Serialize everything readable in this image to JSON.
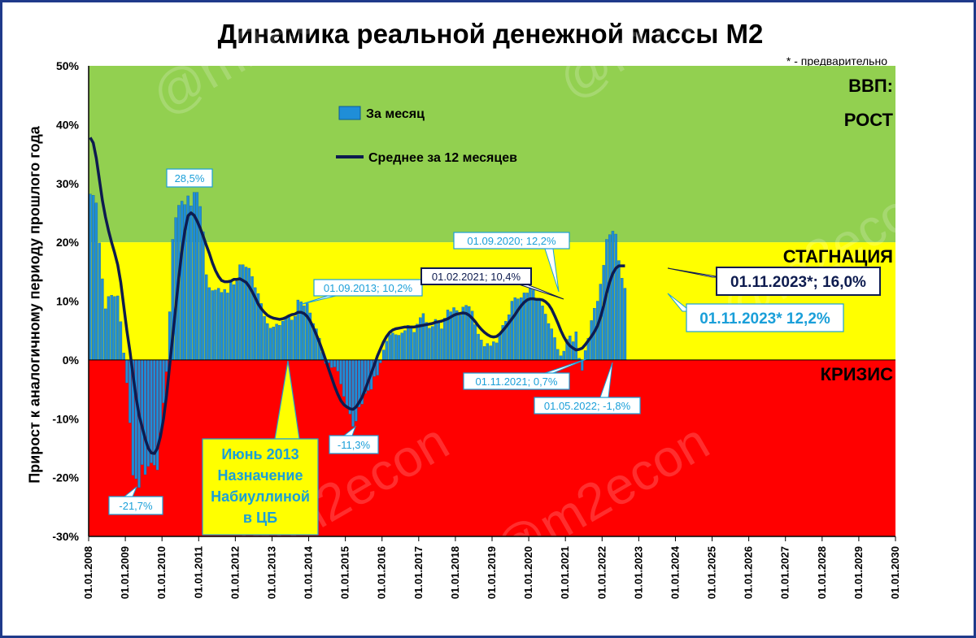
{
  "chart_data": {
    "type": "bar",
    "title": "Динамика реальной денежной массы М2",
    "note": "* - предварительно",
    "ylabel": "Прирост к аналогичному периоду прошлого года",
    "watermark": "@m2econ",
    "ylim": [
      -30,
      50
    ],
    "yticks": [
      "-30%",
      "-20%",
      "-10%",
      "0%",
      "10%",
      "20%",
      "30%",
      "40%",
      "50%"
    ],
    "xlim": [
      "2008-01-01",
      "2030-01-01"
    ],
    "xticks": [
      "01.01.2008",
      "01.01.2009",
      "01.01.2010",
      "01.01.2011",
      "01.01.2012",
      "01.01.2013",
      "01.01.2014",
      "01.01.2015",
      "01.01.2016",
      "01.01.2017",
      "01.01.2018",
      "01.01.2019",
      "01.01.2020",
      "01.01.2021",
      "01.01.2022",
      "01.01.2023",
      "01.01.2024",
      "01.01.2025",
      "01.01.2026",
      "01.01.2027",
      "01.01.2028",
      "01.01.2029",
      "01.01.2030"
    ],
    "zones": [
      {
        "label": "ВВП:",
        "label2": "РОСТ",
        "from": 20,
        "to": 50,
        "color": "#92d050"
      },
      {
        "label": "СТАГНАЦИЯ",
        "from": 0,
        "to": 20,
        "color": "#ffff00"
      },
      {
        "label": "КРИЗИС",
        "from": -30,
        "to": 0,
        "color": "#ff0000"
      }
    ],
    "bar_color": "#1f8ed8",
    "line_color": "#0d1b4f",
    "series": [
      {
        "name": "За месяц",
        "type": "bar",
        "start": "2008-01",
        "values": [
          28.2,
          28.0,
          26.7,
          19.9,
          13.8,
          8.7,
          10.8,
          11.0,
          10.8,
          10.9,
          6.5,
          1.2,
          -3.9,
          -10.7,
          -19.6,
          -20.2,
          -21.7,
          -17.8,
          -19.5,
          -18.1,
          -17.5,
          -17.9,
          -18.7,
          -12.4,
          -7.3,
          -2.0,
          8.2,
          20.5,
          24.2,
          26.3,
          27.0,
          26.4,
          27.9,
          26.2,
          28.5,
          28.5,
          26.1,
          21.8,
          14.5,
          12.3,
          11.8,
          11.9,
          12.2,
          11.5,
          12.0,
          11.4,
          13.3,
          12.8,
          13.4,
          16.2,
          16.2,
          15.8,
          15.6,
          14.2,
          12.3,
          11.3,
          9.6,
          7.4,
          6.2,
          5.4,
          5.6,
          6.1,
          5.9,
          6.6,
          7.0,
          7.5,
          6.8,
          7.4,
          10.2,
          9.9,
          9.2,
          9.6,
          8.0,
          6.2,
          5.3,
          3.7,
          1.3,
          -0.6,
          -0.5,
          -1.3,
          -1.2,
          -1.9,
          -4.1,
          -6.2,
          -8.1,
          -9.2,
          -11.3,
          -10.4,
          -8.0,
          -7.5,
          -5.7,
          -5.2,
          -5.0,
          -2.8,
          -2.6,
          -0.5,
          1.7,
          3.2,
          4.3,
          4.6,
          4.3,
          4.2,
          4.6,
          5.0,
          5.9,
          5.4,
          4.7,
          6.1,
          7.2,
          7.9,
          6.4,
          5.4,
          5.7,
          6.9,
          6.5,
          5.3,
          7.1,
          8.5,
          8.2,
          8.9,
          8.4,
          7.6,
          9.0,
          9.3,
          9.1,
          8.3,
          6.0,
          4.4,
          3.4,
          2.3,
          2.8,
          2.4,
          3.1,
          2.9,
          4.3,
          5.9,
          6.6,
          7.7,
          10.0,
          10.6,
          10.4,
          10.6,
          11.4,
          11.4,
          12.2,
          11.9,
          10.5,
          10.3,
          9.2,
          7.8,
          6.2,
          5.3,
          3.8,
          1.8,
          0.7,
          1.5,
          3.5,
          4.1,
          3.1,
          4.8,
          0.3,
          -1.8,
          1.6,
          3.7,
          6.7,
          8.8,
          10.0,
          12.9,
          16.1,
          20.5,
          21.3,
          21.9,
          21.4,
          16.9,
          13.9,
          12.2
        ]
      },
      {
        "name": "Среднее за 12 месяцев",
        "type": "line",
        "start": "2008-01",
        "values": [
          37.8,
          36.9,
          34.3,
          30.7,
          27.1,
          24.3,
          22.0,
          20.0,
          18.2,
          16.2,
          13.2,
          9.1,
          5.0,
          1.5,
          -2.5,
          -6.3,
          -9.4,
          -11.4,
          -13.4,
          -15.0,
          -15.8,
          -15.9,
          -15.0,
          -13.0,
          -10.0,
          -6.0,
          -1.0,
          4.0,
          9.0,
          14.0,
          18.5,
          22.0,
          24.5,
          25.0,
          24.6,
          23.6,
          22.4,
          21.0,
          19.5,
          18.1,
          16.5,
          15.2,
          14.2,
          13.5,
          13.3,
          13.3,
          13.4,
          13.7,
          13.7,
          13.8,
          13.5,
          13.2,
          12.5,
          11.6,
          10.6,
          9.5,
          8.7,
          8.1,
          7.6,
          7.3,
          7.1,
          7.0,
          6.9,
          7.0,
          7.2,
          7.5,
          7.7,
          7.8,
          8.1,
          8.1,
          7.9,
          7.4,
          6.6,
          5.5,
          4.3,
          3.0,
          1.6,
          0.1,
          -1.5,
          -3.0,
          -4.5,
          -5.8,
          -6.9,
          -7.6,
          -8.0,
          -8.3,
          -8.4,
          -8.0,
          -7.2,
          -6.3,
          -5.0,
          -3.6,
          -2.2,
          -0.8,
          0.7,
          1.9,
          3.1,
          4.0,
          4.7,
          5.1,
          5.3,
          5.4,
          5.5,
          5.6,
          5.6,
          5.6,
          5.6,
          5.7,
          5.8,
          5.9,
          6.0,
          6.1,
          6.2,
          6.4,
          6.5,
          6.6,
          6.8,
          7.0,
          7.3,
          7.6,
          7.8,
          7.9,
          8.0,
          7.9,
          7.6,
          7.1,
          6.5,
          5.8,
          5.2,
          4.7,
          4.3,
          4.0,
          3.9,
          4.0,
          4.4,
          5.0,
          5.6,
          6.3,
          7.0,
          7.7,
          8.5,
          9.2,
          9.8,
          10.2,
          10.4,
          10.4,
          10.3,
          10.3,
          10.2,
          9.9,
          9.4,
          8.6,
          7.5,
          6.3,
          5.0,
          3.9,
          3.0,
          2.4,
          2.0,
          1.7,
          1.8,
          2.0,
          2.6,
          3.3,
          4.0,
          4.8,
          5.8,
          7.3,
          9.2,
          11.4,
          13.3,
          14.7,
          15.6,
          16.0,
          16.0,
          16.0
        ]
      }
    ],
    "legend": [
      {
        "label": "За месяц",
        "kind": "bar"
      },
      {
        "label": "Среднее за 12 месяцев",
        "kind": "line"
      }
    ],
    "annotations": [
      {
        "text": "28,5%",
        "style": "light"
      },
      {
        "text": "-21,7%",
        "style": "light"
      },
      {
        "text": "-11,3%",
        "style": "light"
      },
      {
        "text": "01.09.2013; 10,2%",
        "style": "light"
      },
      {
        "text": "01.09.2020; 12,2%",
        "style": "light"
      },
      {
        "text": "01.02.2021; 10,4%",
        "style": "dark"
      },
      {
        "text": "01.11.2021; 0,7%",
        "style": "light"
      },
      {
        "text": "01.05.2022; -1,8%",
        "style": "light"
      },
      {
        "text": "01.11.2023*; 16,0%",
        "style": "dark-big"
      },
      {
        "text": "01.11.2023* 12,2%",
        "style": "light-big"
      }
    ],
    "callout": {
      "lines": [
        "Июнь 2013",
        "Назначение",
        "Набиуллиной",
        "в ЦБ"
      ]
    }
  }
}
